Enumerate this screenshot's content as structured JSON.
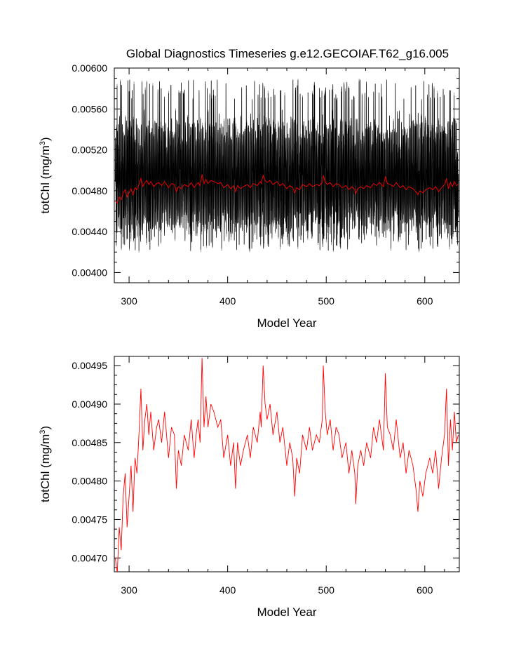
{
  "figure": {
    "title": "Global Diagnostics Timeseries g.e12.GECOIAF.T62_g16.005"
  },
  "colors": {
    "monthly": "#000000",
    "annual": "#ff0000",
    "axis": "#000000"
  },
  "chart_data": [
    {
      "type": "line",
      "panel": "top",
      "title": "Global Diagnostics Timeseries g.e12.GECOIAF.T62_g16.005",
      "xlabel": "Model Year",
      "ylabel_main": "totChl (mg/m",
      "ylabel_sup": "3",
      "ylabel_close": ")",
      "xlim": [
        285,
        635
      ],
      "ylim": [
        0.0039,
        0.006
      ],
      "xticks": [
        300,
        400,
        500,
        600
      ],
      "xtick_labels": [
        "300",
        "400",
        "500",
        "600"
      ],
      "yticks": [
        0.004,
        0.0044,
        0.0048,
        0.0052,
        0.0056,
        0.006
      ],
      "ytick_labels": [
        "0.00400",
        "0.00440",
        "0.00480",
        "0.00520",
        "0.00560",
        "0.00600"
      ],
      "series": [
        {
          "name": "monthly",
          "description_range": "monthly values oscillate roughly between 0.00425 and 0.00585",
          "x_start": 286,
          "x_end": 634,
          "samples_per_year": 12,
          "typical_low": 0.0044,
          "typical_high": 0.00548,
          "extreme_low": 0.00421,
          "extreme_high": 0.00589
        },
        {
          "name": "annual",
          "source": "same annual series as bottom panel"
        }
      ]
    },
    {
      "type": "line",
      "panel": "bottom",
      "xlabel": "Model Year",
      "ylabel_main": "totChl (mg/m",
      "ylabel_sup": "3",
      "ylabel_close": ")",
      "xlim": [
        285,
        635
      ],
      "ylim": [
        0.004682,
        0.004962
      ],
      "xticks": [
        300,
        400,
        500,
        600
      ],
      "xtick_labels": [
        "300",
        "400",
        "500",
        "600"
      ],
      "yticks": [
        0.0047,
        0.00475,
        0.0048,
        0.00485,
        0.0049,
        0.00495
      ],
      "ytick_labels": [
        "0.00470",
        "0.00475",
        "0.00480",
        "0.00485",
        "0.00490",
        "0.00495"
      ],
      "series": [
        {
          "name": "annual",
          "x": [
            286,
            288,
            290,
            292,
            294,
            296,
            298,
            300,
            302,
            304,
            306,
            308,
            310,
            312,
            314,
            316,
            318,
            320,
            322,
            325,
            328,
            330,
            333,
            336,
            338,
            340,
            343,
            346,
            348,
            350,
            353,
            356,
            360,
            363,
            366,
            368,
            370,
            372,
            374,
            376,
            378,
            380,
            383,
            386,
            390,
            393,
            396,
            400,
            403,
            406,
            408,
            410,
            413,
            416,
            420,
            423,
            426,
            430,
            433,
            434,
            436,
            438,
            440,
            443,
            446,
            450,
            453,
            456,
            460,
            463,
            466,
            468,
            470,
            473,
            476,
            480,
            483,
            486,
            490,
            493,
            496,
            497,
            499,
            501,
            504,
            507,
            510,
            513,
            516,
            520,
            523,
            526,
            529,
            530,
            532,
            535,
            538,
            541,
            545,
            548,
            551,
            554,
            556,
            558,
            560,
            562,
            565,
            568,
            571,
            575,
            578,
            581,
            584,
            588,
            591,
            593,
            595,
            598,
            601,
            605,
            608,
            611,
            614,
            617,
            620,
            622,
            624,
            626,
            628,
            630,
            632,
            634
          ],
          "values": [
            0.0047,
            0.00468,
            0.00474,
            0.00471,
            0.00478,
            0.00481,
            0.00474,
            0.00478,
            0.00482,
            0.00476,
            0.00483,
            0.00481,
            0.00486,
            0.00492,
            0.00484,
            0.00488,
            0.0049,
            0.00486,
            0.00489,
            0.00484,
            0.00487,
            0.00488,
            0.00485,
            0.00489,
            0.00486,
            0.00483,
            0.00487,
            0.00486,
            0.00479,
            0.00484,
            0.00482,
            0.00486,
            0.00484,
            0.00488,
            0.00483,
            0.00486,
            0.00488,
            0.00485,
            0.00496,
            0.00487,
            0.00491,
            0.00487,
            0.0049,
            0.00489,
            0.00487,
            0.00488,
            0.00483,
            0.00486,
            0.00482,
            0.00485,
            0.00479,
            0.00485,
            0.00482,
            0.00484,
            0.00486,
            0.00483,
            0.00487,
            0.00485,
            0.00489,
            0.00487,
            0.00495,
            0.0049,
            0.00488,
            0.0049,
            0.00486,
            0.00489,
            0.00485,
            0.00487,
            0.00482,
            0.00485,
            0.00483,
            0.00478,
            0.00483,
            0.00481,
            0.00486,
            0.00484,
            0.00487,
            0.00484,
            0.00486,
            0.00485,
            0.00488,
            0.00495,
            0.00489,
            0.00486,
            0.00488,
            0.00484,
            0.00487,
            0.00486,
            0.00483,
            0.00485,
            0.00481,
            0.00484,
            0.00481,
            0.00477,
            0.00482,
            0.00484,
            0.00482,
            0.00485,
            0.00483,
            0.00487,
            0.00485,
            0.00488,
            0.00486,
            0.00484,
            0.00494,
            0.00487,
            0.00486,
            0.00484,
            0.00488,
            0.00483,
            0.00485,
            0.00481,
            0.00484,
            0.00482,
            0.00479,
            0.00476,
            0.0048,
            0.00478,
            0.00481,
            0.00483,
            0.00481,
            0.00484,
            0.00479,
            0.00483,
            0.00486,
            0.00492,
            0.00482,
            0.00488,
            0.00484,
            0.00489,
            0.00485,
            0.00486
          ]
        }
      ]
    }
  ]
}
